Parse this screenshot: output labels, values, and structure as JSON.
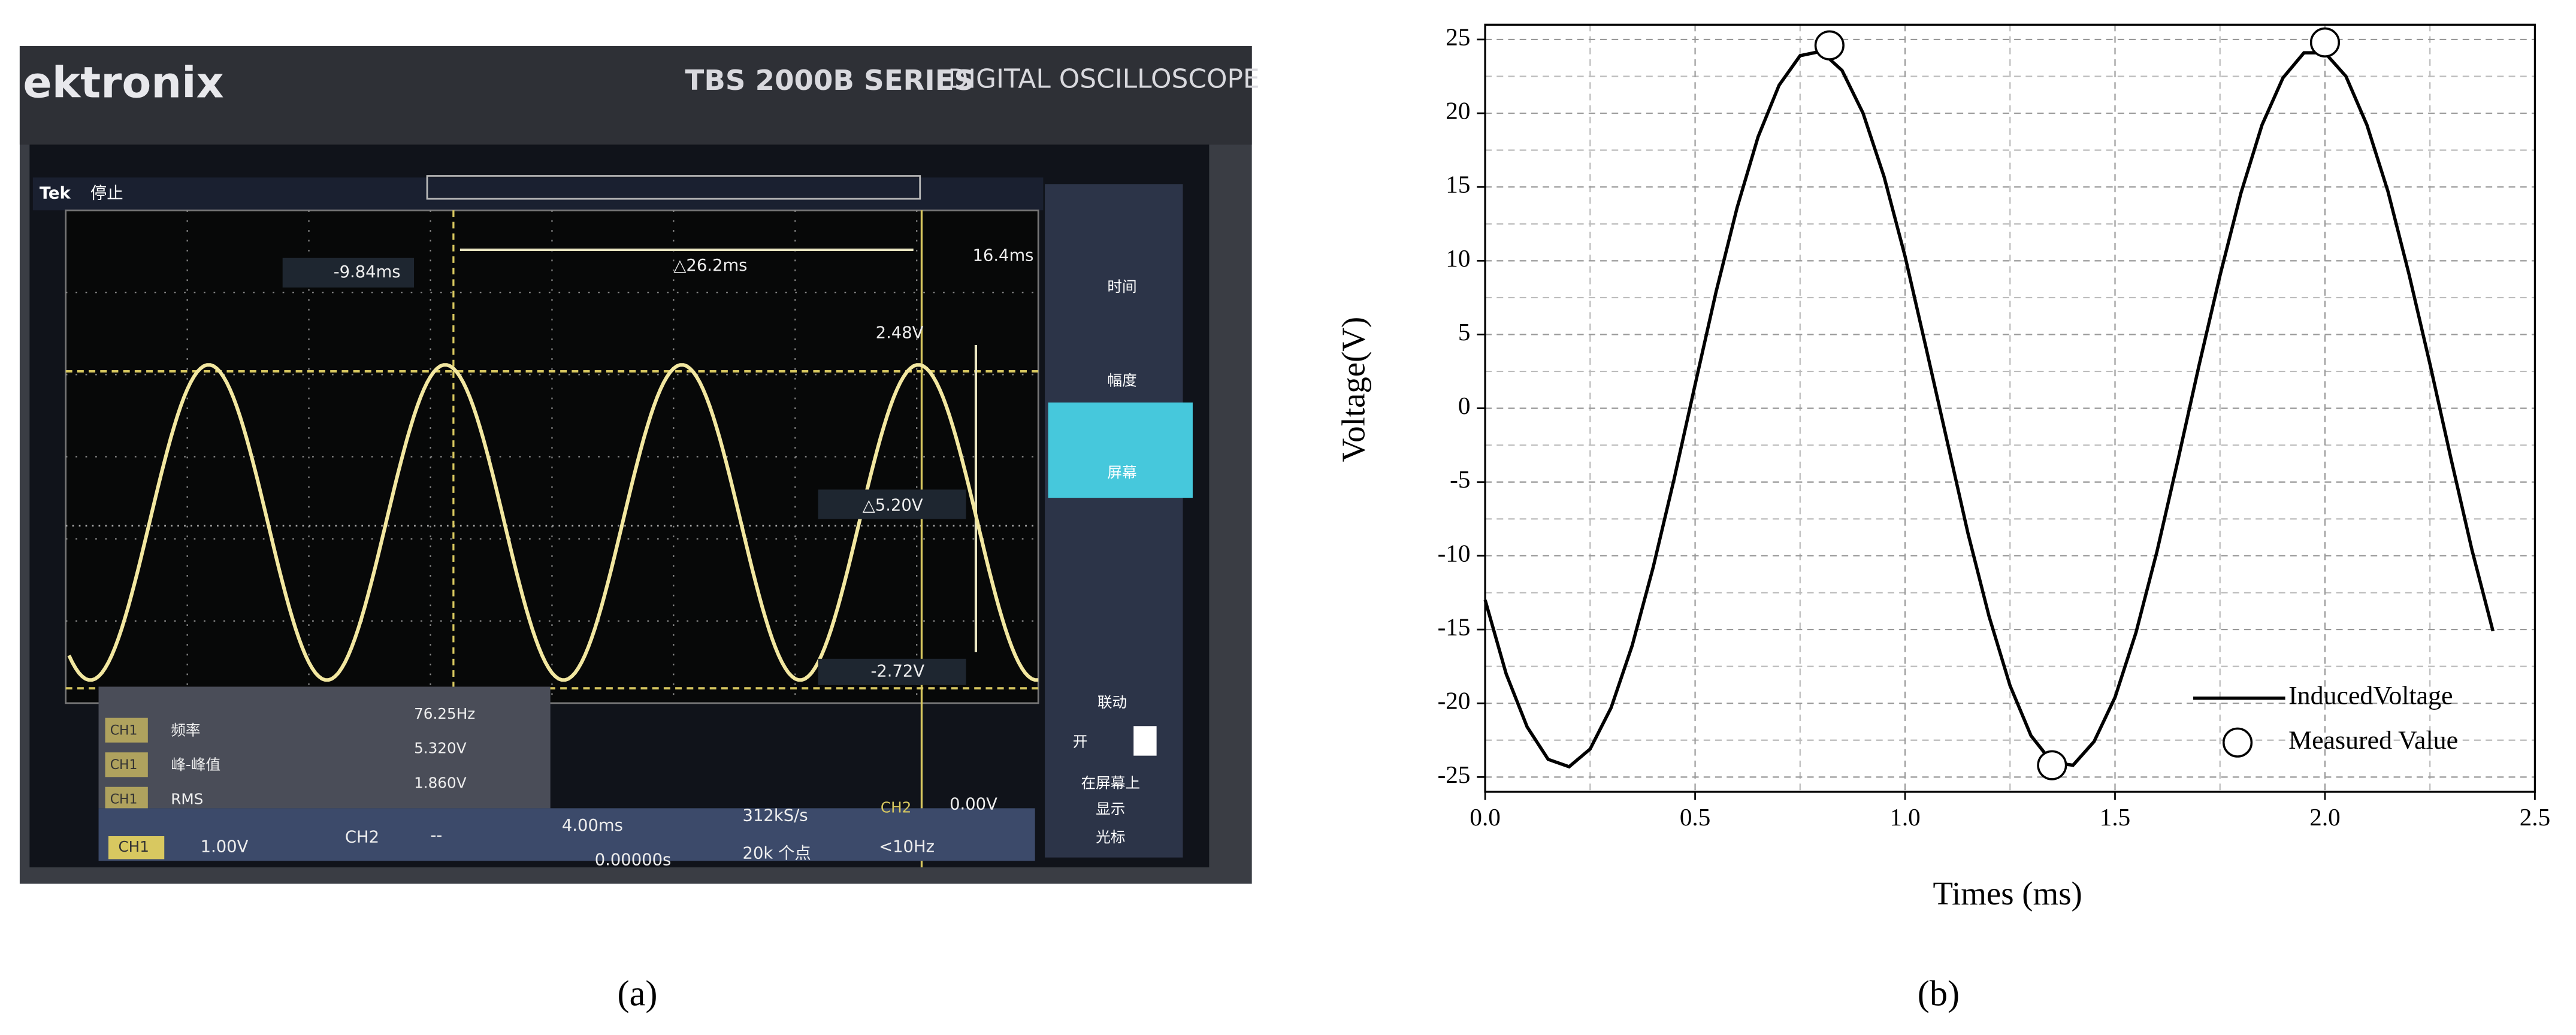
{
  "photo": {
    "brand": "ektronix",
    "series_name": "TBS 2000B SERIES",
    "model_desc": "DIGITAL OSCILLOSCOPE",
    "status_logo": "Tek",
    "status": "停止",
    "cursor_left": "-9.84ms",
    "cursor_delta": "△26.2ms",
    "cursor_right": "16.4ms",
    "volt_top": "2.48V",
    "volt_delta": "△5.20V",
    "volt_bottom": "-2.72V",
    "menu": [
      "时间",
      "幅度",
      "屏幕",
      "联动",
      "开",
      "在屏幕上",
      "显示",
      "光标"
    ],
    "measurements": [
      {
        "channel": "CH1",
        "name": "频率",
        "value": "76.25Hz"
      },
      {
        "channel": "CH1",
        "name": "峰-峰值",
        "value": "5.320V"
      },
      {
        "channel": "CH1",
        "name": "RMS",
        "value": "1.860V"
      }
    ],
    "bottom_bar": {
      "ch1": "CH1",
      "ch1_scale": "1.00V",
      "ch2": "CH2",
      "ch2_scale": "--",
      "timebase": "4.00ms",
      "sample_rate": "312kS/s",
      "trig_ch": "CH2",
      "trig_level": "0.00V",
      "offset": "0.00000s",
      "record": "20k 个点",
      "freq": "<10Hz"
    },
    "caption": "(a)"
  },
  "chart_data": {
    "type": "line",
    "caption": "(b)",
    "x_label": "Times (ms)",
    "y_label": "Voltage(V)",
    "xlim": [
      0,
      2.5
    ],
    "xticks": [
      {
        "value": 0,
        "label": "0.0"
      },
      0.5,
      {
        "value": 1,
        "label": "1.0"
      },
      1.5,
      {
        "value": 2,
        "label": "2.0"
      },
      2.5
    ],
    "ylim": [
      -26,
      26
    ],
    "yticks": [
      -25,
      -20,
      -15,
      -10,
      -5,
      0,
      5,
      10,
      15,
      20,
      25
    ],
    "grid": true,
    "minor_grid": true,
    "legend": "lower right",
    "x": [
      0,
      0.05,
      0.1,
      0.15,
      0.2,
      0.25,
      0.3,
      0.35,
      0.4,
      0.45,
      0.5,
      0.55,
      0.6,
      0.65,
      0.7,
      0.75,
      0.8,
      0.85,
      0.9,
      0.95,
      1.0,
      1.05,
      1.1,
      1.15,
      1.2,
      1.25,
      1.3,
      1.35,
      1.4,
      1.45,
      1.5,
      1.55,
      1.6,
      1.65,
      1.7,
      1.75,
      1.8,
      1.85,
      1.9,
      1.95,
      2.0,
      2.05,
      2.1,
      2.15,
      2.2,
      2.25,
      2.3,
      2.35,
      2.4
    ],
    "series": [
      {
        "name": "InducedVoltage",
        "type": "line",
        "color": "#000000",
        "values": [
          -13.0,
          -18.0,
          -21.6,
          -23.8,
          -24.3,
          -23.1,
          -20.3,
          -16.1,
          -10.8,
          -4.8,
          1.6,
          7.9,
          13.6,
          18.4,
          21.9,
          23.9,
          24.2,
          22.9,
          20.0,
          15.7,
          10.3,
          4.1,
          -2.2,
          -8.5,
          -14.1,
          -18.8,
          -22.2,
          -24.0,
          -24.2,
          -22.6,
          -19.6,
          -15.2,
          -9.7,
          -3.5,
          2.9,
          9.0,
          14.6,
          19.2,
          22.4,
          24.1,
          24.1,
          22.5,
          19.2,
          14.7,
          9.1,
          3.0,
          -3.4,
          -9.6,
          -15.1
        ]
      },
      {
        "name": "Measured Value",
        "type": "scatter",
        "color": "#000000",
        "marker": "open-circle",
        "x": [
          0.82,
          1.35,
          2.0
        ],
        "values": [
          24.6,
          -24.2,
          24.8
        ]
      }
    ]
  }
}
